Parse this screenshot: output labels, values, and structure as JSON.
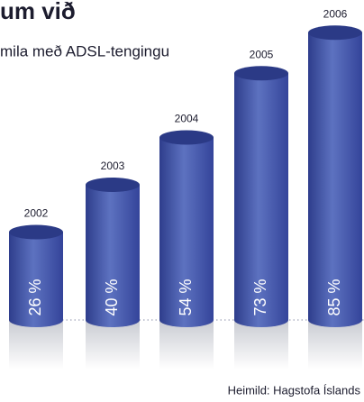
{
  "chart_data": {
    "type": "bar",
    "title": "um við",
    "subtitle": "mila með ADSL-tengingu",
    "categories": [
      "2002",
      "2003",
      "2004",
      "2005",
      "2006"
    ],
    "values": [
      26,
      40,
      54,
      73,
      85
    ],
    "value_labels": [
      "26 %",
      "40 %",
      "54 %",
      "73 %",
      "85 %"
    ],
    "color": "#4356a8",
    "source": "Heimild: Hagstofa Íslands"
  }
}
